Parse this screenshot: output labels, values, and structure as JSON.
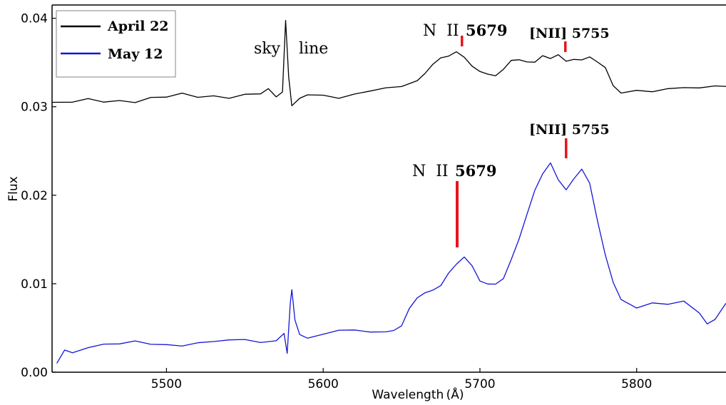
{
  "chart_data": {
    "type": "line",
    "title": "",
    "xlabel": "Wavelength (Å)",
    "ylabel": "Flux",
    "xlim": [
      5427,
      5857
    ],
    "ylim": [
      0.0,
      0.0415
    ],
    "x_ticks": [
      5500,
      5600,
      5700,
      5800
    ],
    "y_ticks": [
      0.0,
      0.01,
      0.02,
      0.03,
      0.04
    ],
    "y_tick_labels": [
      "0.00",
      "0.01",
      "0.02",
      "0.03",
      "0.04"
    ],
    "grid": false,
    "legend_position": "top-left",
    "series": [
      {
        "name": "April 22",
        "color": "#000000",
        "x": [
          5427,
          5440,
          5450,
          5460,
          5470,
          5480,
          5490,
          5500,
          5510,
          5520,
          5530,
          5540,
          5550,
          5560,
          5565,
          5570,
          5574,
          5576,
          5578,
          5580,
          5585,
          5590,
          5600,
          5610,
          5620,
          5630,
          5640,
          5650,
          5660,
          5665,
          5670,
          5675,
          5680,
          5685,
          5690,
          5695,
          5700,
          5705,
          5710,
          5715,
          5720,
          5725,
          5730,
          5735,
          5740,
          5745,
          5750,
          5755,
          5760,
          5765,
          5770,
          5775,
          5780,
          5785,
          5790,
          5800,
          5810,
          5820,
          5830,
          5840,
          5850,
          5857
        ],
        "y": [
          0.0305,
          0.0303,
          0.0307,
          0.0305,
          0.0309,
          0.0307,
          0.0311,
          0.0309,
          0.0313,
          0.031,
          0.0314,
          0.0312,
          0.0315,
          0.0313,
          0.0318,
          0.031,
          0.0318,
          0.04,
          0.0335,
          0.03,
          0.0307,
          0.0312,
          0.0314,
          0.0312,
          0.0316,
          0.0317,
          0.0319,
          0.0321,
          0.033,
          0.034,
          0.035,
          0.0355,
          0.0355,
          0.036,
          0.0356,
          0.0348,
          0.0342,
          0.0337,
          0.0333,
          0.034,
          0.0352,
          0.0355,
          0.0353,
          0.0351,
          0.0356,
          0.0352,
          0.0358,
          0.0353,
          0.0356,
          0.0354,
          0.0355,
          0.0348,
          0.0343,
          0.0325,
          0.0318,
          0.032,
          0.0316,
          0.0318,
          0.032,
          0.0322,
          0.0326,
          0.0323
        ]
      },
      {
        "name": "May 12",
        "color": "#1616d8",
        "x": [
          5430,
          5435,
          5440,
          5450,
          5460,
          5470,
          5480,
          5490,
          5500,
          5510,
          5520,
          5530,
          5540,
          5550,
          5560,
          5570,
          5575,
          5577,
          5579,
          5580,
          5582,
          5585,
          5590,
          5600,
          5610,
          5620,
          5630,
          5640,
          5645,
          5650,
          5655,
          5660,
          5665,
          5670,
          5675,
          5680,
          5685,
          5690,
          5695,
          5700,
          5705,
          5710,
          5715,
          5720,
          5725,
          5730,
          5735,
          5740,
          5745,
          5750,
          5755,
          5760,
          5765,
          5770,
          5775,
          5780,
          5785,
          5790,
          5800,
          5810,
          5820,
          5830,
          5840,
          5845,
          5850,
          5857
        ],
        "y": [
          0.001,
          0.0025,
          0.0024,
          0.003,
          0.0032,
          0.003,
          0.0033,
          0.0031,
          0.0033,
          0.0032,
          0.0034,
          0.0033,
          0.0034,
          0.0036,
          0.0035,
          0.0038,
          0.0045,
          0.002,
          0.0075,
          0.0092,
          0.006,
          0.0045,
          0.004,
          0.0042,
          0.0045,
          0.0046,
          0.0046,
          0.0048,
          0.0049,
          0.0052,
          0.007,
          0.0082,
          0.009,
          0.0095,
          0.01,
          0.0112,
          0.012,
          0.0128,
          0.012,
          0.0105,
          0.0102,
          0.01,
          0.0104,
          0.0125,
          0.015,
          0.018,
          0.0208,
          0.0225,
          0.0235,
          0.0215,
          0.0205,
          0.022,
          0.0232,
          0.0215,
          0.017,
          0.013,
          0.01,
          0.0083,
          0.0075,
          0.008,
          0.0076,
          0.0078,
          0.0065,
          0.0055,
          0.0062,
          0.0078
        ]
      }
    ],
    "annotations": {
      "sky": "sky",
      "line": "line",
      "nii_top_label": "N  II",
      "nii_top_value": "5679",
      "nii_forb_top": "[NII] 5755",
      "nii_bottom_label": "N  II",
      "nii_bottom_value": "5679",
      "nii_forb_bottom": "[NII] 5755",
      "marker_color": "#e8141c"
    }
  }
}
